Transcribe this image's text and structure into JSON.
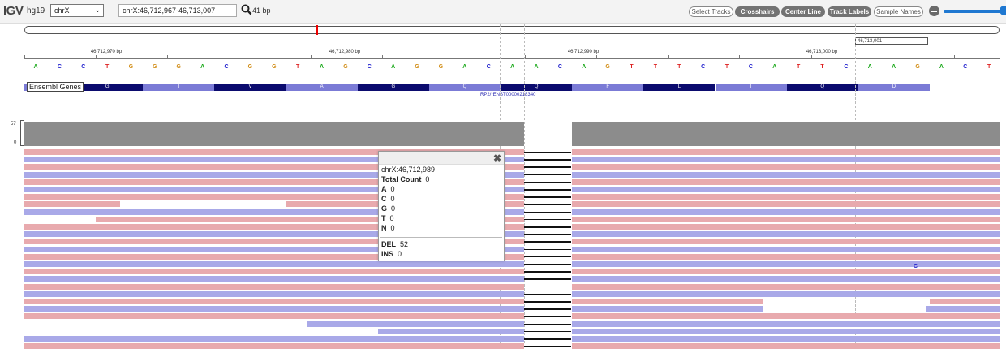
{
  "toolbar": {
    "logo": "IGV",
    "genome": "hg19",
    "chromosome": "chrX",
    "locus": "chrX:46,712,967-46,713,007",
    "width_label": "41 bp",
    "buttons": [
      "Select Tracks",
      "Crosshairs",
      "Center Line",
      "Track Labels",
      "Sample Names"
    ]
  },
  "ruler": {
    "box_label": "46,713,001",
    "ticks": [
      "46,712,970 bp",
      "46,712,980 bp",
      "46,712,990 bp",
      "46,713,000 bp"
    ],
    "sequence": [
      "A",
      "C",
      "C",
      "T",
      "G",
      "G",
      "G",
      "A",
      "C",
      "G",
      "G",
      "T",
      "A",
      "G",
      "C",
      "A",
      "G",
      "G",
      "A",
      "C",
      "A",
      "A",
      "C",
      "A",
      "G",
      "T",
      "T",
      "T",
      "C",
      "T",
      "C",
      "A",
      "T",
      "T",
      "C",
      "A",
      "A",
      "G",
      "A",
      "C",
      "T"
    ]
  },
  "gene_track": {
    "label": "Ensembl Genes",
    "amino_acids": [
      "",
      "G",
      "T",
      "V",
      "A",
      "G",
      "Q",
      "Q",
      "F",
      "L",
      "I",
      "Q",
      "D"
    ],
    "transcript": "RP2/*ENST00000218340"
  },
  "coverage": {
    "scale_max": "57",
    "scale_min": "0"
  },
  "popup": {
    "position": "chrX:46,712,989",
    "total_label": "Total Count",
    "total": "0",
    "bases": [
      {
        "base": "A",
        "count": "0"
      },
      {
        "base": "C",
        "count": "0"
      },
      {
        "base": "G",
        "count": "0"
      },
      {
        "base": "T",
        "count": "0"
      },
      {
        "base": "N",
        "count": "0"
      }
    ],
    "del_label": "DEL",
    "del": "52",
    "ins_label": "INS",
    "ins": "0"
  },
  "mismatch": "C",
  "colors": {
    "forward": "#e8aaae",
    "reverse": "#a9a9e8",
    "coverage": "#8c8c8c",
    "gene_dark": "#0b0b6e",
    "gene_light": "#7b7bd6"
  }
}
